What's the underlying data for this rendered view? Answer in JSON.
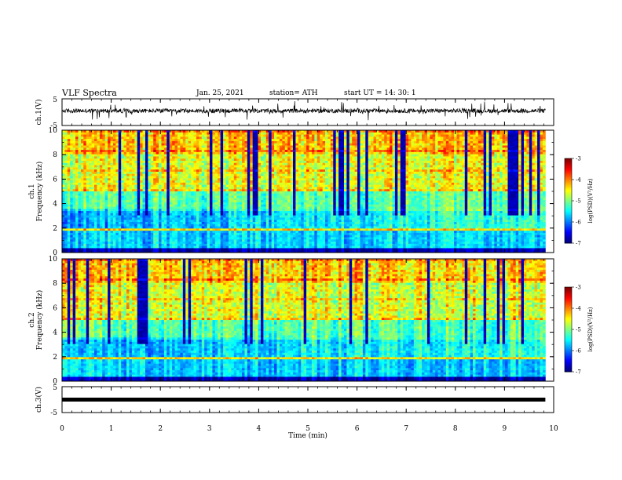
{
  "header": {
    "title": "VLF Spectra",
    "date": "Jan. 25, 2021",
    "station": "station= ATH",
    "start": "start  UT =   14: 30: 1"
  },
  "chart_data": [
    {
      "type": "line",
      "ylabel": "ch.1(V)",
      "ylim": [
        -5,
        5
      ],
      "y_ticks": [
        "5",
        "-5"
      ],
      "xlim": [
        0,
        10
      ],
      "baseline": 0.5,
      "trace_color": "#000000"
    },
    {
      "type": "heatmap",
      "ylabel_top": "ch.1",
      "ylabel": "Frequency  (kHz)",
      "ylim": [
        0,
        10
      ],
      "y_ticks": [
        "0",
        "2",
        "4",
        "6",
        "8",
        "10"
      ],
      "xlim": [
        0,
        9.83
      ],
      "colorbar": {
        "label": "log(PSD)(V²/Hz)",
        "range": [
          -7,
          -3
        ],
        "ticks": [
          "-3",
          "-4",
          "-5",
          "-6",
          "-7"
        ]
      }
    },
    {
      "type": "heatmap",
      "ylabel_top": "ch.2",
      "ylabel": "Frequency  (kHz)",
      "ylim": [
        0,
        10
      ],
      "y_ticks": [
        "0",
        "2",
        "4",
        "6",
        "8",
        "10"
      ],
      "xlim": [
        0,
        9.83
      ],
      "colorbar": {
        "label": "log(PSD)(V²/Hz)",
        "range": [
          -7,
          -3
        ],
        "ticks": [
          "-3",
          "-4",
          "-5",
          "-6",
          "-7"
        ]
      }
    },
    {
      "type": "line",
      "ylabel": "ch.3(V)",
      "ylim": [
        -5,
        5
      ],
      "y_ticks": [
        "5",
        "-5"
      ],
      "xlim": [
        0,
        10
      ],
      "baseline": 0,
      "trace_color": "#000000"
    }
  ],
  "x_axis": {
    "label": "Time  (min)",
    "range": [
      0,
      10
    ],
    "ticks": [
      "0",
      "1",
      "2",
      "3",
      "4",
      "5",
      "6",
      "7",
      "8",
      "9",
      "10"
    ]
  }
}
